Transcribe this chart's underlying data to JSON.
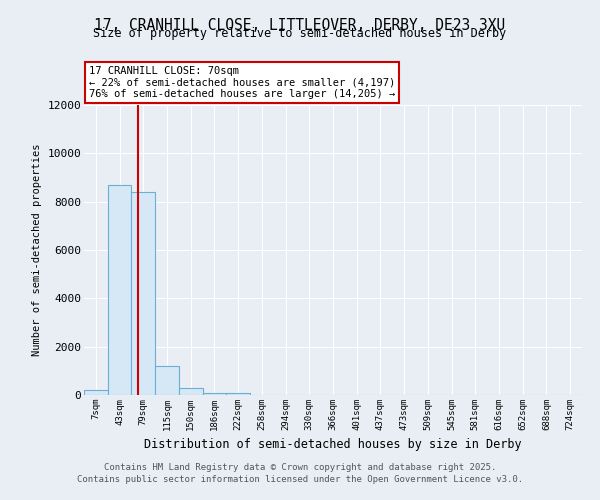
{
  "title_line1": "17, CRANHILL CLOSE, LITTLEOVER, DERBY, DE23 3XU",
  "title_line2": "Size of property relative to semi-detached houses in Derby",
  "xlabel": "Distribution of semi-detached houses by size in Derby",
  "ylabel": "Number of semi-detached properties",
  "bar_labels": [
    "7sqm",
    "43sqm",
    "79sqm",
    "115sqm",
    "150sqm",
    "186sqm",
    "222sqm",
    "258sqm",
    "294sqm",
    "330sqm",
    "366sqm",
    "401sqm",
    "437sqm",
    "473sqm",
    "509sqm",
    "545sqm",
    "581sqm",
    "616sqm",
    "652sqm",
    "688sqm",
    "724sqm"
  ],
  "bar_values": [
    200,
    8700,
    8400,
    1200,
    300,
    100,
    80,
    0,
    0,
    0,
    0,
    0,
    0,
    0,
    0,
    0,
    0,
    0,
    0,
    0,
    0
  ],
  "bar_color": "#d6e8f5",
  "bar_edge_color": "#6aafd6",
  "red_line_x": 1.78,
  "annotation_title": "17 CRANHILL CLOSE: 70sqm",
  "annotation_line1": "← 22% of semi-detached houses are smaller (4,197)",
  "annotation_line2": "76% of semi-detached houses are larger (14,205) →",
  "annotation_box_color": "#ffffff",
  "annotation_box_edge": "#cc0000",
  "red_line_color": "#cc0000",
  "ylim": [
    0,
    12000
  ],
  "yticks": [
    0,
    2000,
    4000,
    6000,
    8000,
    10000,
    12000
  ],
  "footer_line1": "Contains HM Land Registry data © Crown copyright and database right 2025.",
  "footer_line2": "Contains public sector information licensed under the Open Government Licence v3.0.",
  "bg_color": "#e8eef4",
  "plot_bg_color": "#e8eef4"
}
